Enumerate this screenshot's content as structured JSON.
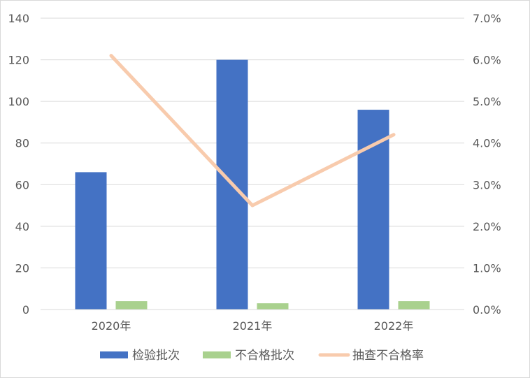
{
  "chart_data": {
    "type": "bar",
    "categories": [
      "2020年",
      "2021年",
      "2022年"
    ],
    "series": [
      {
        "name": "检验批次",
        "type": "bar",
        "axis": "left",
        "color": "#4472c4",
        "values": [
          66,
          120,
          96
        ]
      },
      {
        "name": "不合格批次",
        "type": "bar",
        "axis": "left",
        "color": "#a9d18e",
        "values": [
          4,
          3,
          4
        ]
      },
      {
        "name": "抽查不合格率",
        "type": "line",
        "axis": "right",
        "color": "#f8cbad",
        "values": [
          0.061,
          0.025,
          0.042
        ]
      }
    ],
    "y_left": {
      "min": 0,
      "max": 140,
      "ticks": [
        "0",
        "20",
        "40",
        "60",
        "80",
        "100",
        "120",
        "140"
      ]
    },
    "y_right": {
      "min": 0,
      "max": 0.07,
      "ticks": [
        "0.0%",
        "1.0%",
        "2.0%",
        "3.0%",
        "4.0%",
        "5.0%",
        "6.0%",
        "7.0%"
      ]
    },
    "grid": true,
    "legend_position": "bottom"
  }
}
